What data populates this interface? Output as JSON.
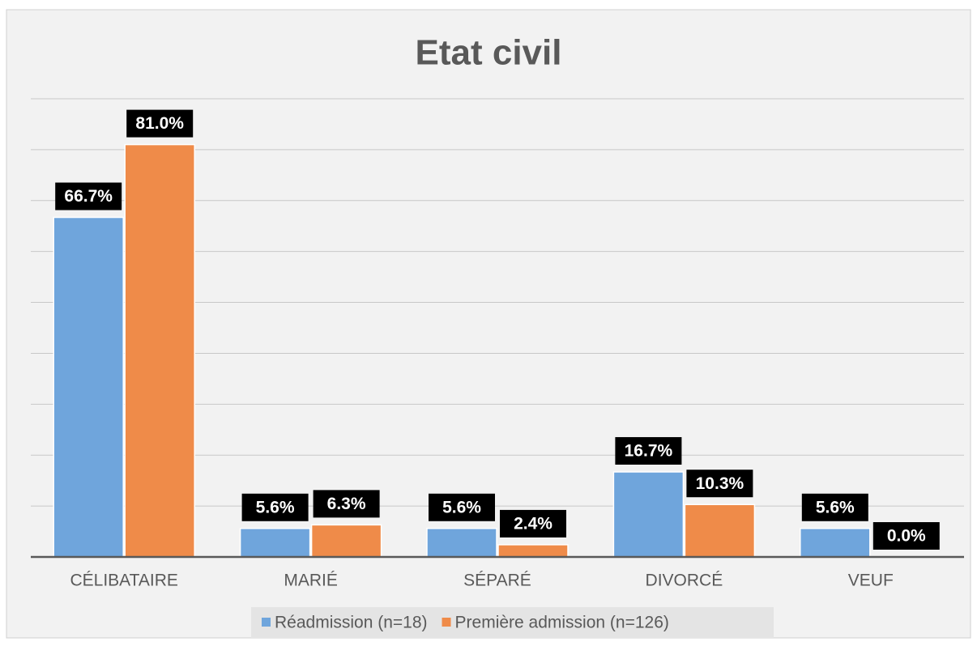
{
  "chart_data": {
    "type": "bar",
    "title": "Etat civil",
    "categories": [
      "CÉLIBATAIRE",
      "MARIÉ",
      "SÉPARÉ",
      "DIVORCÉ",
      "VEUF"
    ],
    "series": [
      {
        "name": "Réadmission (n=18)",
        "color": "#6fa5dc",
        "values": [
          66.7,
          5.6,
          5.6,
          16.7,
          5.6
        ],
        "value_labels": [
          "66.7%",
          "5.6%",
          "5.6%",
          "16.7%",
          "5.6%"
        ]
      },
      {
        "name": "Première admission (n=126)",
        "color": "#ef8b49",
        "values": [
          81.0,
          6.3,
          2.4,
          10.3,
          0.0
        ],
        "value_labels": [
          "81.0%",
          "6.3%",
          "2.4%",
          "10.3%",
          "0.0%"
        ]
      }
    ],
    "ylim": [
      0,
      90
    ],
    "yticks": [
      0,
      10,
      20,
      30,
      40,
      50,
      60,
      70,
      80,
      90
    ],
    "grid": true,
    "legend": "bottom"
  }
}
